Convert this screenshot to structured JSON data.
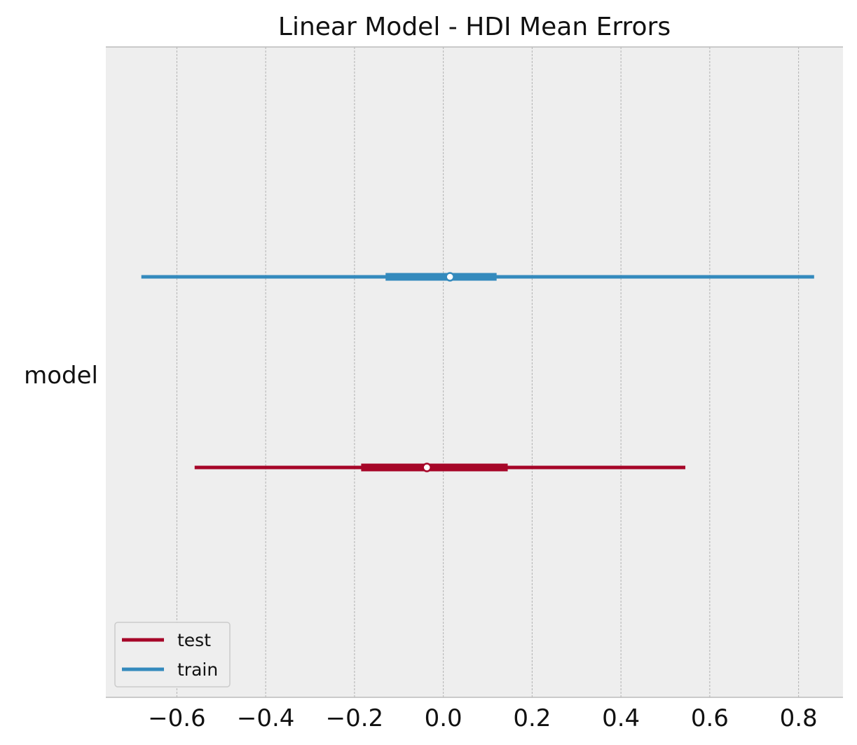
{
  "chart_data": {
    "type": "forest",
    "title": "Linear Model - HDI Mean Errors",
    "xlabel": "",
    "ylabel": "",
    "row_labels": [
      "model"
    ],
    "xlim": [
      -0.76,
      0.9
    ],
    "xticks": [
      -0.6,
      -0.4,
      -0.2,
      0.0,
      0.2,
      0.4,
      0.6,
      0.8
    ],
    "xtick_labels": [
      "−0.6",
      "−0.4",
      "−0.2",
      "0.0",
      "0.2",
      "0.4",
      "0.6",
      "0.8"
    ],
    "grid": "vertical dashed",
    "legend_placement": "lower-left",
    "series": [
      {
        "name": "test",
        "color": "#A60628",
        "hdi_low": -0.56,
        "hdi_high": 0.545,
        "iqr_low": -0.185,
        "iqr_high": 0.145,
        "point": -0.037,
        "row_offset": -0.5
      },
      {
        "name": "train",
        "color": "#348ABD",
        "hdi_low": -0.68,
        "hdi_high": 0.835,
        "iqr_low": -0.13,
        "iqr_high": 0.12,
        "point": 0.015,
        "row_offset": 0.5
      }
    ],
    "legend_order": [
      "test",
      "train"
    ]
  }
}
